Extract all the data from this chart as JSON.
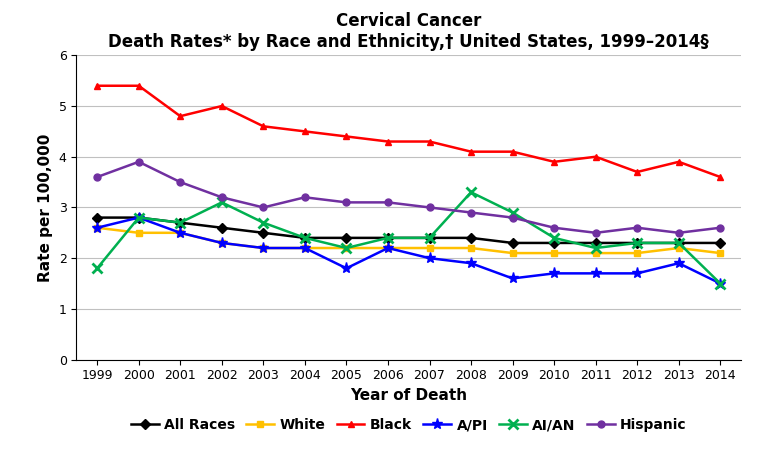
{
  "title_line1": "Cervical Cancer",
  "title_line2": "Death Rates* by Race and Ethnicity,† United States, 1999–2014§",
  "xlabel": "Year of Death",
  "ylabel": "Rate per 100,000",
  "years": [
    1999,
    2000,
    2001,
    2002,
    2003,
    2004,
    2005,
    2006,
    2007,
    2008,
    2009,
    2010,
    2011,
    2012,
    2013,
    2014
  ],
  "series": {
    "All Races": {
      "values": [
        2.8,
        2.8,
        2.7,
        2.6,
        2.5,
        2.4,
        2.4,
        2.4,
        2.4,
        2.4,
        2.3,
        2.3,
        2.3,
        2.3,
        2.3,
        2.3
      ],
      "color": "#000000",
      "marker": "D",
      "linewidth": 1.8,
      "markersize": 5
    },
    "White": {
      "values": [
        2.6,
        2.5,
        2.5,
        2.3,
        2.2,
        2.2,
        2.2,
        2.2,
        2.2,
        2.2,
        2.1,
        2.1,
        2.1,
        2.1,
        2.2,
        2.1
      ],
      "color": "#FFC000",
      "marker": "s",
      "linewidth": 1.8,
      "markersize": 5
    },
    "Black": {
      "values": [
        5.4,
        5.4,
        4.8,
        5.0,
        4.6,
        4.5,
        4.4,
        4.3,
        4.3,
        4.1,
        4.1,
        3.9,
        4.0,
        3.7,
        3.9,
        3.6
      ],
      "color": "#FF0000",
      "marker": "^",
      "linewidth": 1.8,
      "markersize": 5
    },
    "A/PI": {
      "values": [
        2.6,
        2.8,
        2.5,
        2.3,
        2.2,
        2.2,
        1.8,
        2.2,
        2.0,
        1.9,
        1.6,
        1.7,
        1.7,
        1.7,
        1.9,
        1.5
      ],
      "color": "#0000FF",
      "marker": "*",
      "linewidth": 1.8,
      "markersize": 8
    },
    "AI/AN": {
      "values": [
        1.8,
        2.8,
        2.7,
        3.1,
        2.7,
        2.4,
        2.2,
        2.4,
        2.4,
        3.3,
        2.9,
        2.4,
        2.2,
        2.3,
        2.3,
        1.5
      ],
      "color": "#00B050",
      "marker": "x",
      "linewidth": 1.8,
      "markersize": 7,
      "markeredgewidth": 2.0
    },
    "Hispanic": {
      "values": [
        3.6,
        3.9,
        3.5,
        3.2,
        3.0,
        3.2,
        3.1,
        3.1,
        3.0,
        2.9,
        2.8,
        2.6,
        2.5,
        2.6,
        2.5,
        2.6
      ],
      "color": "#7030A0",
      "marker": "o",
      "linewidth": 1.8,
      "markersize": 5
    }
  },
  "ylim": [
    0,
    6
  ],
  "yticks": [
    0,
    1,
    2,
    3,
    4,
    5,
    6
  ],
  "background_color": "#FFFFFF",
  "grid_color": "#C0C0C0",
  "title_fontsize": 12,
  "label_fontsize": 11,
  "tick_fontsize": 9,
  "legend_fontsize": 10
}
